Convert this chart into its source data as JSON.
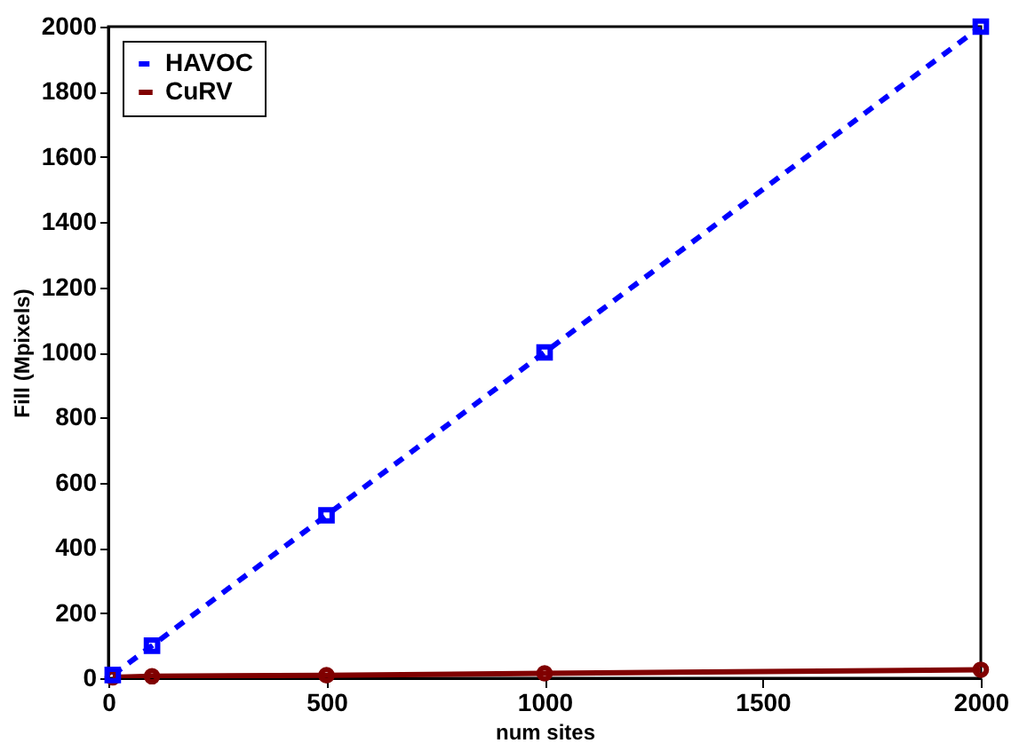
{
  "chart_data": {
    "type": "line",
    "xlabel": "num sites",
    "ylabel": "Fill (Mpixels)",
    "xlim": [
      0,
      2000
    ],
    "xticks": [
      0,
      500,
      1000,
      1500,
      2000
    ],
    "ylim": [
      0,
      2000
    ],
    "yticks": [
      0,
      200,
      400,
      600,
      800,
      1000,
      1200,
      1400,
      1600,
      1800,
      2000
    ],
    "grid": false,
    "legend": "top left",
    "series": [
      {
        "name": "HAVOC",
        "color": "#0000ff",
        "x": [
          10,
          100,
          500,
          1000,
          2000
        ],
        "values": [
          10,
          100,
          500,
          1000,
          2000
        ],
        "marker": "square",
        "line_style": "dashed"
      },
      {
        "name": "CuRV",
        "color": "#800000",
        "x": [
          10,
          100,
          500,
          1000,
          2000
        ],
        "values": [
          3,
          6,
          9,
          15,
          26
        ],
        "marker": "circle",
        "line_style": "solid"
      }
    ]
  }
}
